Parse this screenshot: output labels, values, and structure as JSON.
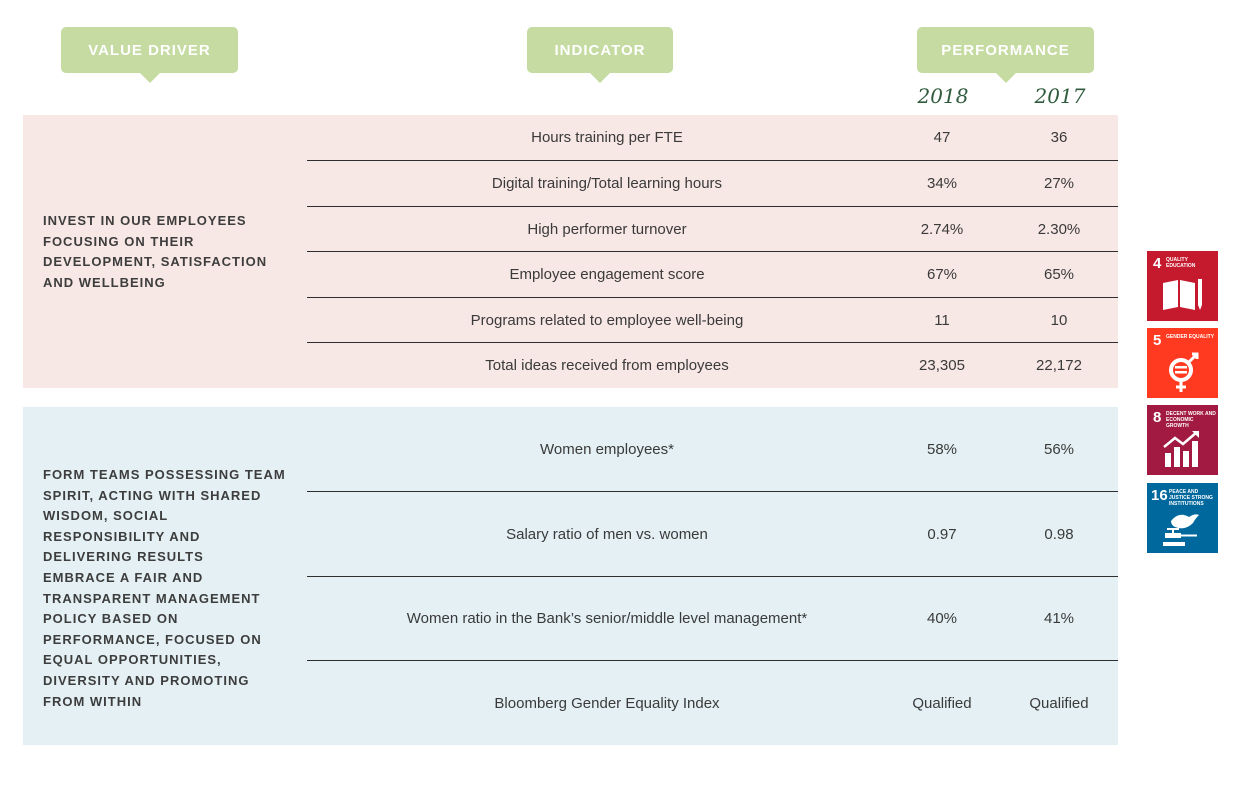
{
  "headers": {
    "value_driver": "VALUE DRIVER",
    "indicator": "INDICATOR",
    "performance": "PERFORMANCE",
    "year_2018": "2018",
    "year_2017": "2017"
  },
  "section1": {
    "driver": "INVEST IN OUR EMPLOYEES FOCUSING ON THEIR DEVELOPMENT, SATISFACTION AND WELLBEING",
    "rows": [
      {
        "indicator": "Hours training per FTE",
        "y2018": "47",
        "y2017": "36"
      },
      {
        "indicator": "Digital training/Total learning hours",
        "y2018": "34%",
        "y2017": "27%"
      },
      {
        "indicator": "High performer turnover",
        "y2018": "2.74%",
        "y2017": "2.30%"
      },
      {
        "indicator": "Employee engagement score",
        "y2018": "67%",
        "y2017": "65%"
      },
      {
        "indicator": "Programs related to employee well-being",
        "y2018": "11",
        "y2017": "10"
      },
      {
        "indicator": "Total ideas received from employees",
        "y2018": "23,305",
        "y2017": "22,172"
      }
    ]
  },
  "section2": {
    "driver_a": "FORM TEAMS POSSESSING TEAM SPIRIT, ACTING WITH SHARED WISDOM, SOCIAL RESPONSIBILITY AND DELIVERING RESULTS",
    "driver_b": "EMBRACE A FAIR AND TRANSPARENT MANAGEMENT POLICY BASED ON PERFORMANCE, FOCUSED ON EQUAL OPPORTUNITIES, DIVERSITY AND PROMOTING FROM WITHIN",
    "rows": [
      {
        "indicator": "Women employees*",
        "y2018": "58%",
        "y2017": "56%"
      },
      {
        "indicator": "Salary ratio of men vs. women",
        "y2018": "0.97",
        "y2017": "0.98"
      },
      {
        "indicator": "Women ratio in the Bank’s senior/middle level management*",
        "y2018": "40%",
        "y2017": "41%"
      },
      {
        "indicator": "Bloomberg Gender Equality Index",
        "y2018": "Qualified",
        "y2017": "Qualified"
      }
    ]
  },
  "sdgs": [
    {
      "num": "4",
      "label": "QUALITY EDUCATION",
      "color": "#c5192d",
      "icon": "book-pencil-icon"
    },
    {
      "num": "5",
      "label": "GENDER EQUALITY",
      "color": "#ff3a21",
      "icon": "gender-equality-icon"
    },
    {
      "num": "8",
      "label": "DECENT WORK AND ECONOMIC GROWTH",
      "color": "#a21942",
      "icon": "growth-chart-icon"
    },
    {
      "num": "16",
      "label": "PEACE AND JUSTICE STRONG INSTITUTIONS",
      "color": "#00689d",
      "icon": "dove-gavel-icon"
    }
  ]
}
